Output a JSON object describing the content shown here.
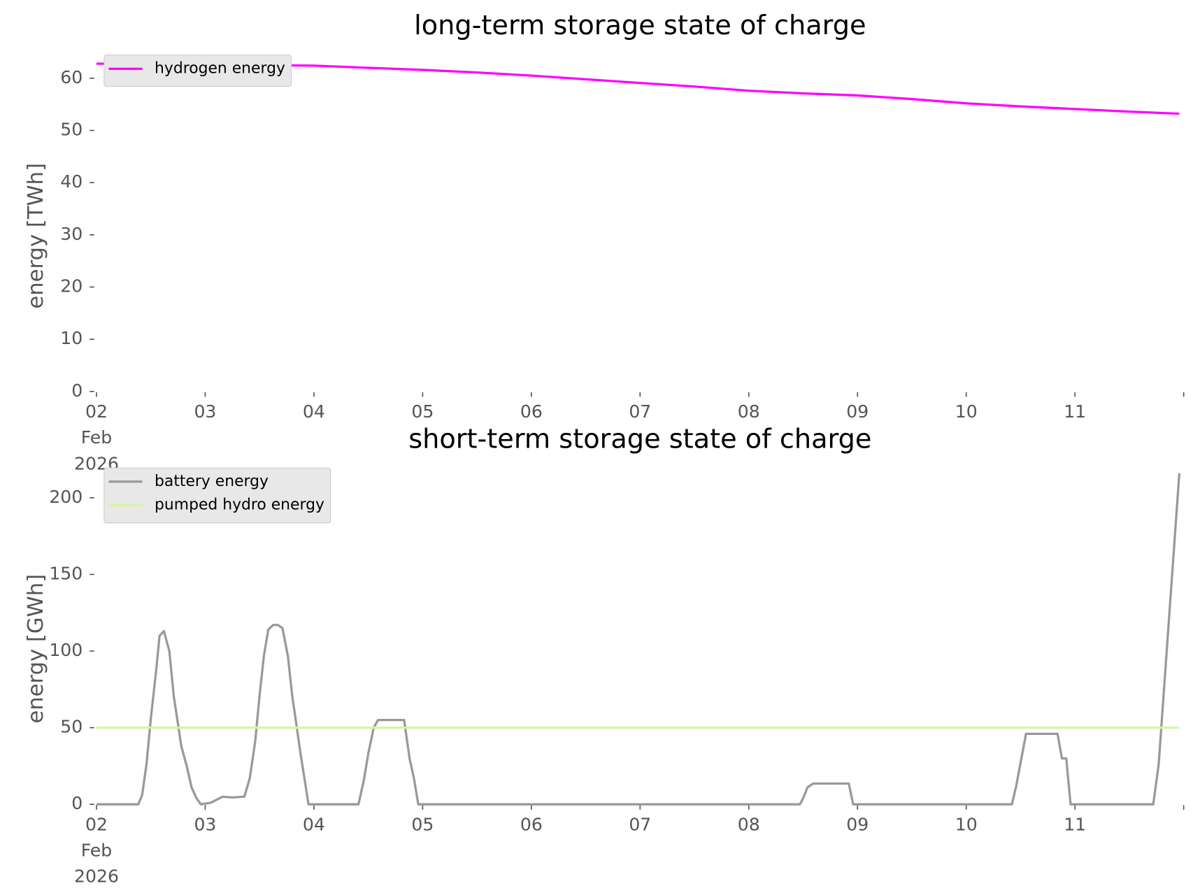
{
  "chart_data": [
    {
      "type": "line",
      "title": "long-term storage state of charge",
      "ylabel": "energy [TWh]",
      "xlim": [
        2,
        12
      ],
      "ylim": [
        0,
        64
      ],
      "yticks": [
        0,
        10,
        20,
        30,
        40,
        50,
        60
      ],
      "xticks": [
        {
          "value": 2,
          "label": "02\nFeb\n2026"
        },
        {
          "value": 3,
          "label": "03"
        },
        {
          "value": 4,
          "label": "04"
        },
        {
          "value": 5,
          "label": "05"
        },
        {
          "value": 6,
          "label": "06"
        },
        {
          "value": 7,
          "label": "07"
        },
        {
          "value": 8,
          "label": "08"
        },
        {
          "value": 9,
          "label": "09"
        },
        {
          "value": 10,
          "label": "10"
        },
        {
          "value": 11,
          "label": "11"
        }
      ],
      "grid": false,
      "legend": "upper left",
      "series": [
        {
          "name": "hydrogen energy",
          "color": "#ff00ff",
          "x": [
            2,
            3,
            4,
            4.5,
            5,
            5.5,
            6,
            6.5,
            7,
            7.5,
            8,
            8.5,
            9,
            9.5,
            10,
            10.5,
            11,
            11.5,
            11.96
          ],
          "values": [
            62.8,
            62.6,
            62.4,
            62.0,
            61.6,
            61.1,
            60.5,
            59.8,
            59.1,
            58.4,
            57.6,
            57.1,
            56.7,
            56.0,
            55.2,
            54.6,
            54.1,
            53.6,
            53.2
          ]
        }
      ]
    },
    {
      "type": "line",
      "title": "short-term storage state of charge",
      "ylabel": "energy [GWh]",
      "xlim": [
        2,
        12
      ],
      "ylim": [
        0,
        218
      ],
      "yticks": [
        0,
        50,
        100,
        150,
        200
      ],
      "xticks": [
        {
          "value": 2,
          "label": "02\nFeb\n2026"
        },
        {
          "value": 3,
          "label": "03"
        },
        {
          "value": 4,
          "label": "04"
        },
        {
          "value": 5,
          "label": "05"
        },
        {
          "value": 6,
          "label": "06"
        },
        {
          "value": 7,
          "label": "07"
        },
        {
          "value": 8,
          "label": "08"
        },
        {
          "value": 9,
          "label": "09"
        },
        {
          "value": 10,
          "label": "10"
        },
        {
          "value": 11,
          "label": "11"
        }
      ],
      "grid": false,
      "legend": "upper left",
      "series": [
        {
          "name": "battery energy",
          "color": "#999999",
          "x": [
            2,
            2.385,
            2.42,
            2.46,
            2.5,
            2.55,
            2.58,
            2.62,
            2.67,
            2.71,
            2.78,
            2.83,
            2.875,
            2.92,
            2.96,
            3.05,
            3.16,
            3.25,
            3.36,
            3.41,
            3.46,
            3.5,
            3.54,
            3.58,
            3.625,
            3.67,
            3.71,
            3.76,
            3.8,
            3.875,
            3.95,
            4.41,
            4.46,
            4.5,
            4.55,
            4.59,
            4.83,
            4.88,
            4.92,
            4.96,
            8.47,
            8.5,
            8.54,
            8.59,
            8.92,
            8.96,
            10.42,
            10.46,
            10.51,
            10.55,
            10.84,
            10.88,
            10.92,
            10.96,
            11.72,
            11.77,
            11.96
          ],
          "values": [
            0,
            0,
            6,
            26,
            56,
            88,
            110,
            113,
            100,
            71,
            38,
            25,
            11,
            4,
            0,
            1,
            5,
            4.5,
            5,
            17,
            41,
            71,
            97,
            114,
            117,
            117,
            115,
            97,
            71,
            34,
            0,
            0,
            16,
            33,
            50,
            55,
            55,
            30,
            17,
            0,
            0,
            4,
            11,
            13.5,
            13.5,
            0,
            0,
            12,
            31,
            46,
            46,
            30,
            30,
            0,
            0,
            26,
            216
          ]
        },
        {
          "name": "pumped hydro energy",
          "color": "#d4f7a0",
          "x": [
            2,
            11.96
          ],
          "values": [
            50,
            50
          ]
        }
      ]
    }
  ]
}
